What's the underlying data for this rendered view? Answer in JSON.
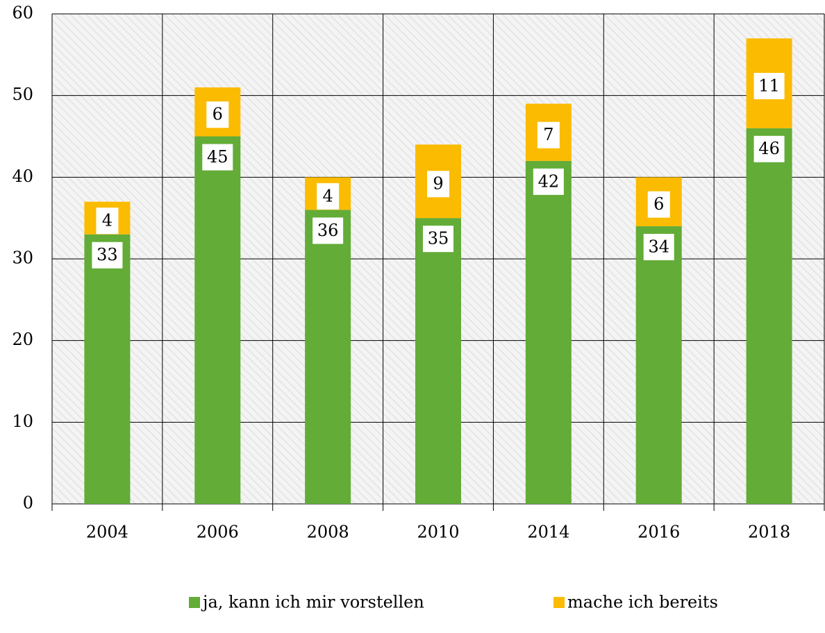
{
  "chart_data": {
    "type": "stacked_bar",
    "categories": [
      "2004",
      "2006",
      "2008",
      "2010",
      "2014",
      "2016",
      "2018"
    ],
    "series": [
      {
        "name": "ja, kann ich mir vorstellen",
        "color": "#62ac37",
        "values": [
          33,
          45,
          36,
          35,
          42,
          34,
          46
        ]
      },
      {
        "name": "mache ich bereits",
        "color": "#fbbb00",
        "values": [
          4,
          6,
          4,
          9,
          7,
          6,
          11
        ]
      }
    ],
    "ylim": [
      0,
      60
    ],
    "yticks": [
      0,
      10,
      20,
      30,
      40,
      50,
      60
    ],
    "grid": true,
    "legend": "bottom"
  }
}
